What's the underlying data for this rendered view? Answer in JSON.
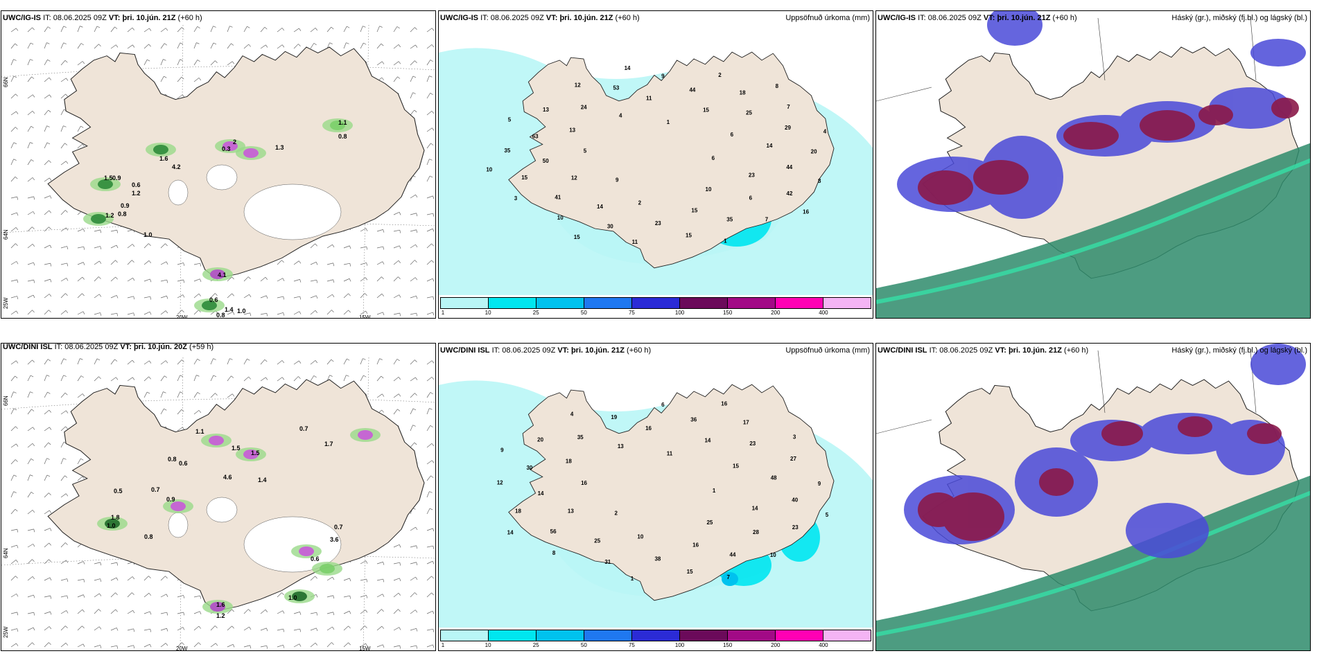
{
  "panels": [
    {
      "model": "UWC/IG-IS",
      "it_label": "IT:",
      "it": "08.06.2025 09Z",
      "vt_label": "VT:",
      "vt": "þri. 10.jún. 21Z",
      "lead": "(+60 h)",
      "right": ""
    },
    {
      "model": "UWC/IG-IS",
      "it_label": "IT:",
      "it": "08.06.2025 09Z",
      "vt_label": "VT:",
      "vt": "þri. 10.jún. 21Z",
      "lead": "(+60 h)",
      "right": "Uppsöfnuð úrkoma (mm)"
    },
    {
      "model": "UWC/IG-IS",
      "it_label": "IT:",
      "it": "08.06.2025 09Z",
      "vt_label": "VT:",
      "vt": "þri. 10.jún. 21Z",
      "lead": "(+60 h)",
      "right": "Háský (gr.), miðský (fj.bl.) og lágský (bl.)"
    },
    {
      "model": "UWC/DINI ISL",
      "it_label": "IT:",
      "it": "08.06.2025 09Z",
      "vt_label": "VT:",
      "vt": "þri. 10.jún. 20Z",
      "lead": "(+59 h)",
      "right": ""
    },
    {
      "model": "UWC/DINI ISL",
      "it_label": "IT:",
      "it": "08.06.2025 09Z",
      "vt_label": "VT:",
      "vt": "þri. 10.jún. 21Z",
      "lead": "(+60 h)",
      "right": "Uppsöfnuð úrkoma (mm)"
    },
    {
      "model": "UWC/DINI ISL",
      "it_label": "IT:",
      "it": "08.06.2025 09Z",
      "vt_label": "VT:",
      "vt": "þri. 10.jún. 21Z",
      "lead": "(+60 h)",
      "right": "Háský (gr.), miðský (fj.bl.) og lágský (bl.)"
    }
  ],
  "axes": {
    "lat66": "66N",
    "lat64": "64N",
    "lon20": "20W",
    "lon15": "15W",
    "lon25": "25W"
  },
  "colorbar": {
    "ticks": [
      "1",
      "10",
      "25",
      "50",
      "75",
      "100",
      "150",
      "200",
      "400"
    ],
    "colors": [
      "#b9f6f6",
      "#00e6ef",
      "#00c2ee",
      "#1f78f0",
      "#2b2bd6",
      "#6b0a5a",
      "#a20a86",
      "#ff00b4",
      "#f4b4f4"
    ]
  },
  "wind_labels_top": [
    "1.1",
    "0.8",
    "2",
    "0.3",
    "1.3",
    "1.6",
    "4.2",
    "1.5",
    "0.9",
    "0.6",
    "1.2",
    "0.9",
    "0.8",
    "1.2",
    "1.0",
    "4.1",
    "0.6",
    "1.4",
    "1.0",
    "0.8"
  ],
  "wind_labels_bottom": [
    "0.7",
    "1.1",
    "1.7",
    "0.8",
    "0.6",
    "1.5",
    "1.5",
    "4.6",
    "1.4",
    "0.5",
    "0.7",
    "0.9",
    "1.8",
    "1.0",
    "0.8",
    "0.7",
    "3.6",
    "0.6",
    "1.6",
    "1.0",
    "1.2"
  ],
  "precip_top": [
    "6",
    "9",
    "1",
    "10",
    "5",
    "6",
    "2",
    "4",
    "23",
    "12",
    "15",
    "15",
    "13",
    "14",
    "14",
    "11",
    "6",
    "50",
    "25",
    "23",
    "24",
    "44",
    "41",
    "44",
    "35",
    "63",
    "29",
    "30",
    "53",
    "42",
    "15",
    "18",
    "15",
    "13",
    "20",
    "10",
    "9",
    "7",
    "35",
    "7",
    "11",
    "12",
    "8",
    "3",
    "2",
    "1",
    "5",
    "4",
    "15",
    "14",
    "16",
    "10",
    "8"
  ],
  "precip_bottom": [
    "1",
    "2",
    "11",
    "25",
    "16",
    "15",
    "10",
    "13",
    "14",
    "13",
    "14",
    "16",
    "18",
    "48",
    "25",
    "16",
    "28",
    "14",
    "23",
    "38",
    "35",
    "40",
    "56",
    "36",
    "44",
    "30",
    "27",
    "31",
    "19",
    "23",
    "18",
    "17",
    "15",
    "20",
    "9",
    "8",
    "6",
    "10",
    "12",
    "3",
    "1",
    "4",
    "5",
    "14",
    "16",
    "7",
    "9"
  ],
  "cloud_colors": {
    "high": "#4a4ad8",
    "mid": "#8b1a4a",
    "low": "#2e8b6b",
    "land": "#efe4d8",
    "sea": "#ffffff"
  }
}
